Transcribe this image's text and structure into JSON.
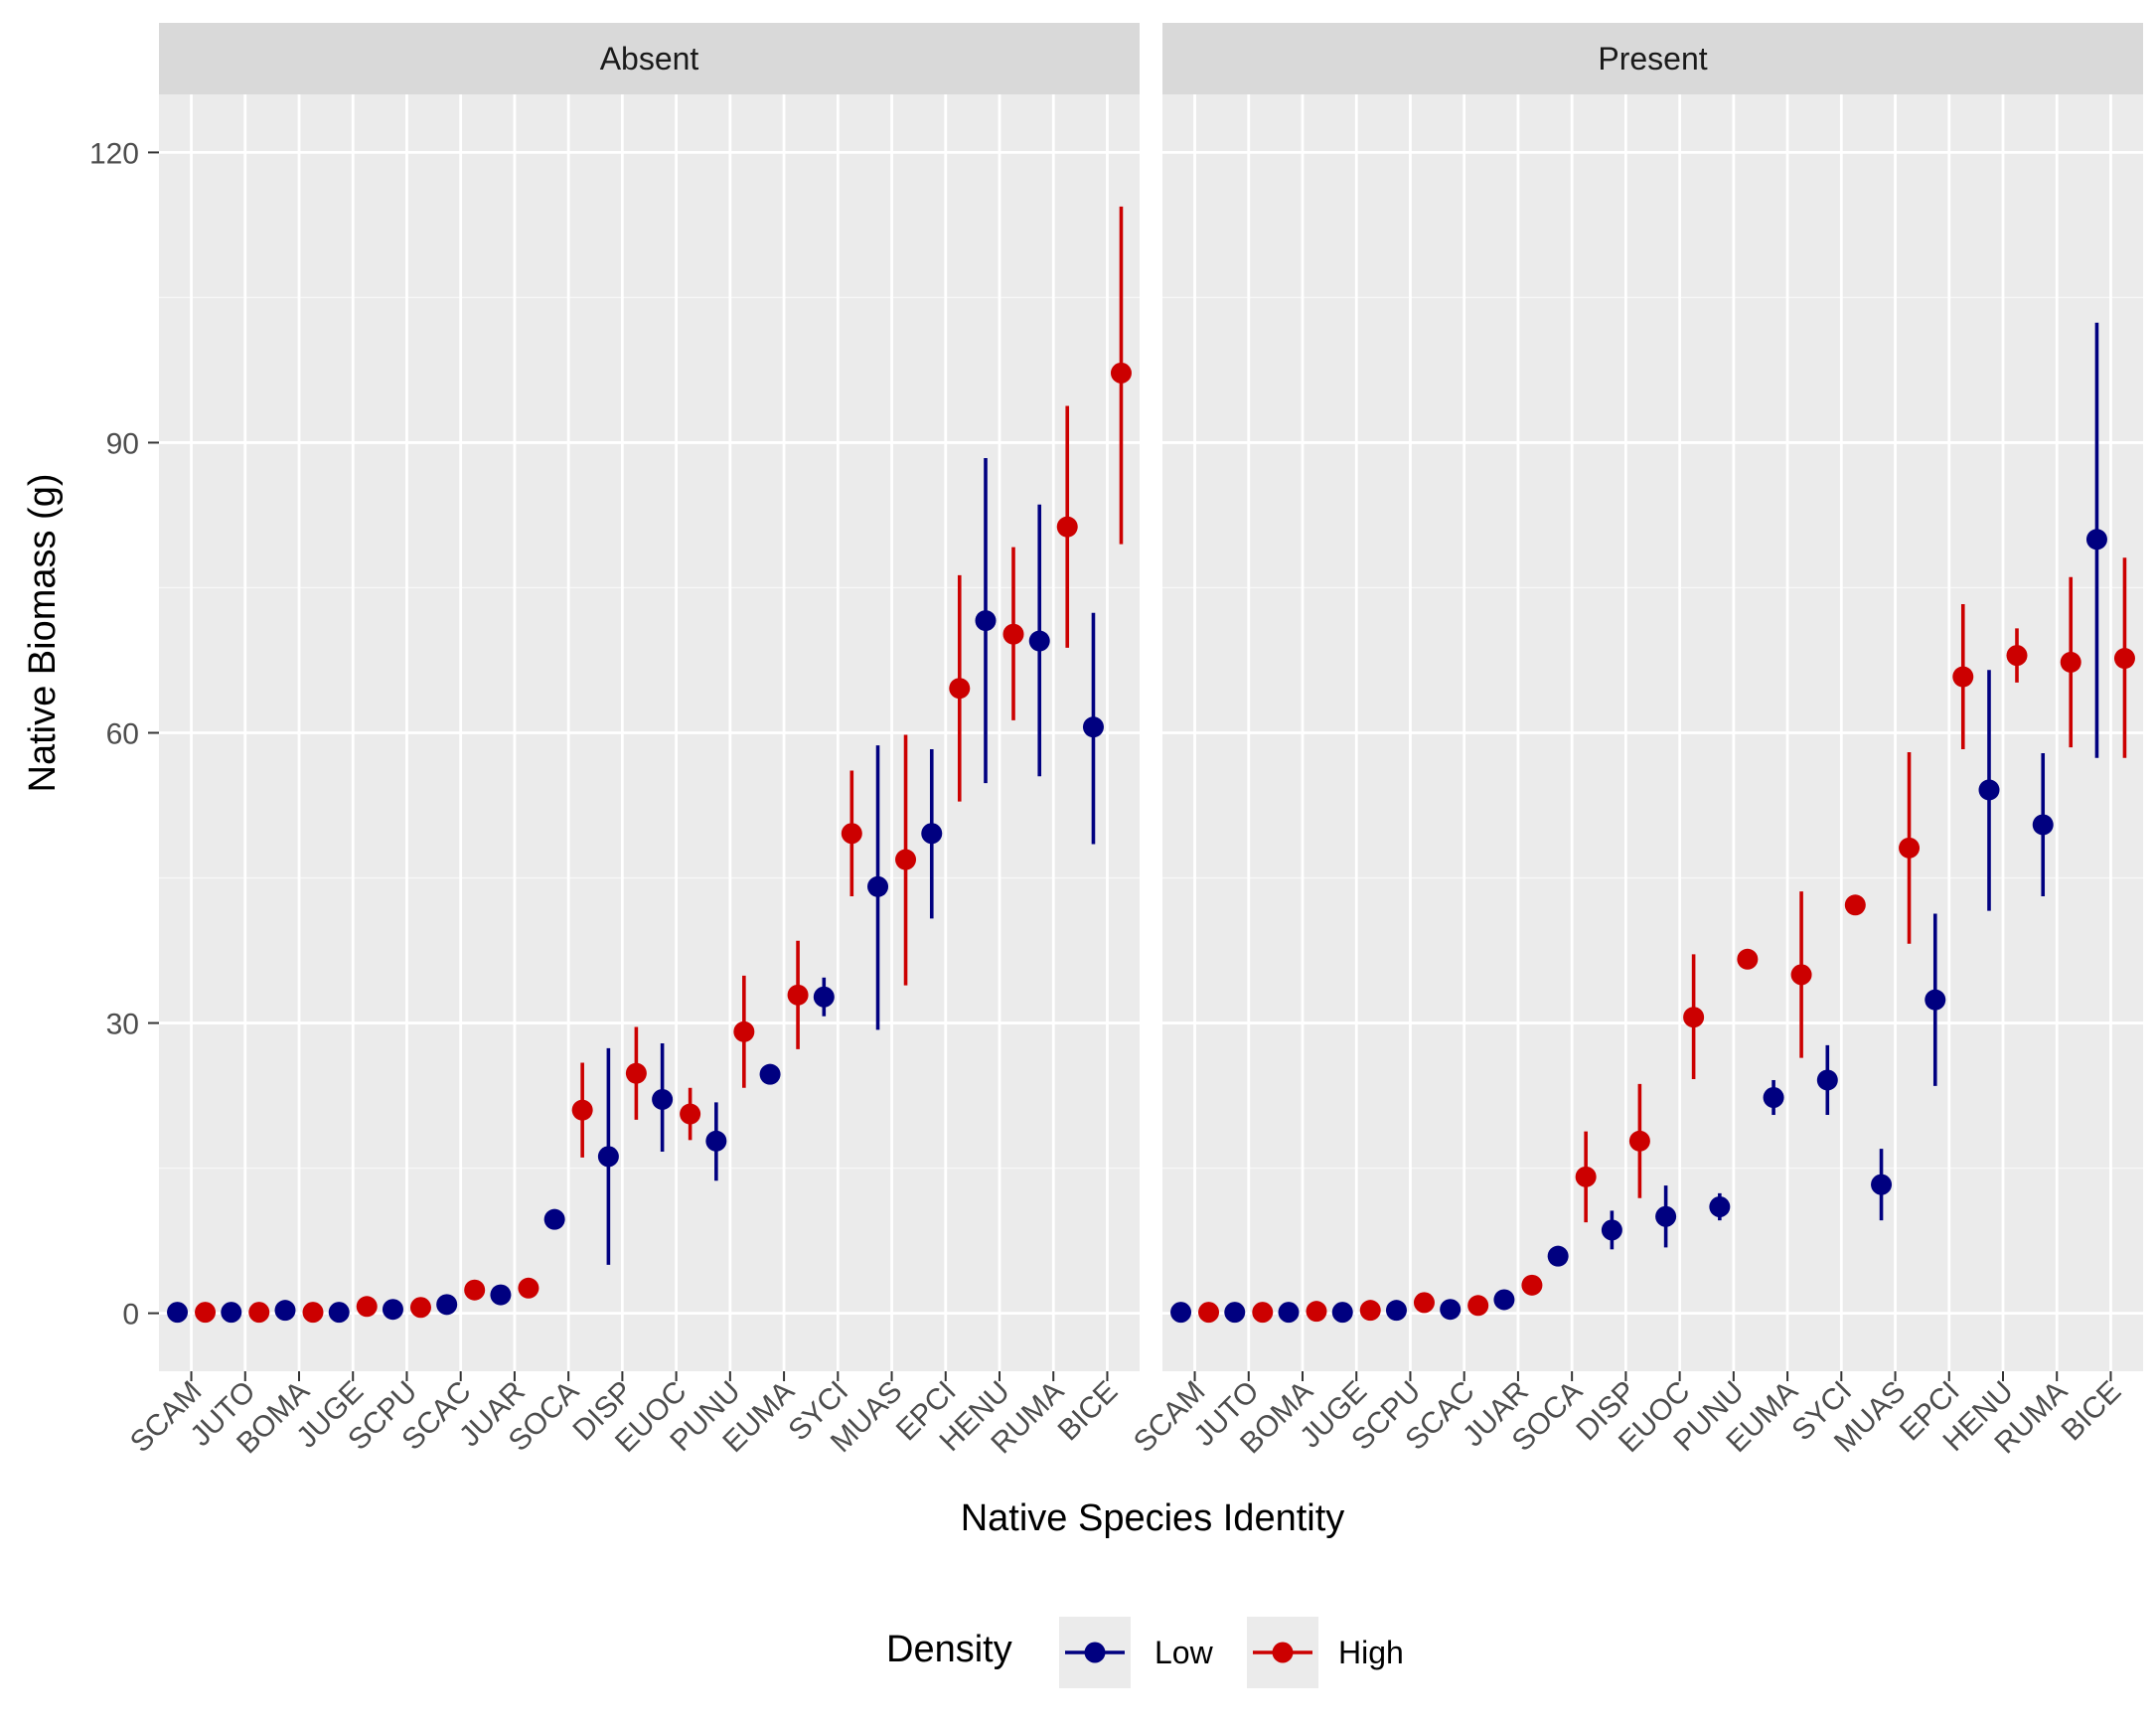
{
  "chart_data": {
    "type": "scatter",
    "xlabel": "Native Species Identity",
    "ylabel": "Native Biomass (g)",
    "ylim": [
      -6,
      126
    ],
    "y_ticks": [
      0,
      30,
      60,
      90,
      120
    ],
    "grid": true,
    "legend_position": "bottom",
    "legend": {
      "title": "Density",
      "entries": [
        {
          "name": "Low",
          "color": "#000080"
        },
        {
          "name": "High",
          "color": "#CC0000"
        }
      ]
    },
    "categories": [
      "SCAM",
      "JUTO",
      "BOMA",
      "JUGE",
      "SCPU",
      "SCAC",
      "JUAR",
      "SOCA",
      "DISP",
      "EUOC",
      "PUNU",
      "EUMA",
      "SYCI",
      "MUAS",
      "EPCI",
      "HENU",
      "RUMA",
      "BICE"
    ],
    "panels": [
      {
        "label": "Absent",
        "series": [
          {
            "name": "Low",
            "color": "#000080",
            "values": [
              0.1,
              0.1,
              0.3,
              0.1,
              0.4,
              0.9,
              1.9,
              9.7,
              16.2,
              22.1,
              17.8,
              24.7,
              32.7,
              44.1,
              49.6,
              71.6,
              69.5,
              60.6
            ],
            "lower": [
              0.1,
              0.1,
              0.1,
              0.1,
              0.2,
              0.7,
              1.4,
              9.7,
              5.0,
              16.7,
              13.7,
              24.7,
              30.7,
              29.3,
              40.8,
              54.8,
              55.5,
              48.5
            ],
            "upper": [
              0.1,
              0.2,
              0.5,
              0.2,
              0.6,
              1.1,
              2.4,
              9.7,
              27.4,
              27.9,
              21.8,
              24.7,
              34.7,
              58.7,
              58.3,
              88.4,
              83.6,
              72.4
            ]
          },
          {
            "name": "High",
            "color": "#CC0000",
            "values": [
              0.1,
              0.1,
              0.1,
              0.7,
              0.6,
              2.4,
              2.6,
              21.0,
              24.8,
              20.6,
              29.1,
              32.9,
              49.6,
              46.9,
              64.6,
              70.2,
              81.3,
              97.2
            ],
            "lower": [
              0.1,
              0.1,
              0.1,
              0.5,
              0.4,
              2.1,
              2.2,
              16.1,
              20.0,
              17.9,
              23.3,
              27.3,
              43.1,
              33.9,
              52.9,
              61.3,
              68.8,
              79.5
            ],
            "upper": [
              0.1,
              0.1,
              0.1,
              0.9,
              0.8,
              2.7,
              3.0,
              25.9,
              29.6,
              23.3,
              34.9,
              38.5,
              56.1,
              59.8,
              76.3,
              79.2,
              93.8,
              114.4
            ]
          }
        ]
      },
      {
        "label": "Present",
        "series": [
          {
            "name": "Low",
            "color": "#000080",
            "values": [
              0.1,
              0.1,
              0.1,
              0.1,
              0.3,
              0.4,
              1.4,
              5.9,
              8.6,
              10.0,
              11.0,
              22.3,
              24.1,
              13.3,
              32.4,
              54.1,
              50.5,
              80.0
            ],
            "lower": [
              0.1,
              0.1,
              0.1,
              0.1,
              0.2,
              0.2,
              1.0,
              5.7,
              6.6,
              6.8,
              9.6,
              20.5,
              20.5,
              9.6,
              23.5,
              41.6,
              43.1,
              57.4
            ],
            "upper": [
              0.1,
              0.1,
              0.1,
              0.1,
              0.5,
              0.6,
              1.8,
              6.1,
              10.6,
              13.2,
              12.4,
              24.1,
              27.7,
              17.0,
              41.3,
              66.5,
              57.9,
              102.4
            ]
          },
          {
            "name": "High",
            "color": "#CC0000",
            "values": [
              0.1,
              0.1,
              0.2,
              0.3,
              1.1,
              0.8,
              2.9,
              14.1,
              17.8,
              30.6,
              36.6,
              35.0,
              42.2,
              48.1,
              65.8,
              68.0,
              67.3,
              67.7
            ],
            "lower": [
              0.1,
              0.1,
              0.1,
              0.2,
              0.9,
              0.6,
              2.5,
              9.4,
              11.9,
              24.2,
              35.9,
              26.4,
              42.2,
              38.2,
              58.3,
              65.2,
              58.5,
              57.4
            ],
            "upper": [
              0.1,
              0.1,
              0.3,
              0.4,
              1.3,
              1.0,
              3.3,
              18.8,
              23.7,
              37.1,
              37.3,
              43.6,
              42.2,
              58.0,
              73.3,
              70.8,
              76.1,
              78.1
            ]
          }
        ]
      }
    ]
  }
}
